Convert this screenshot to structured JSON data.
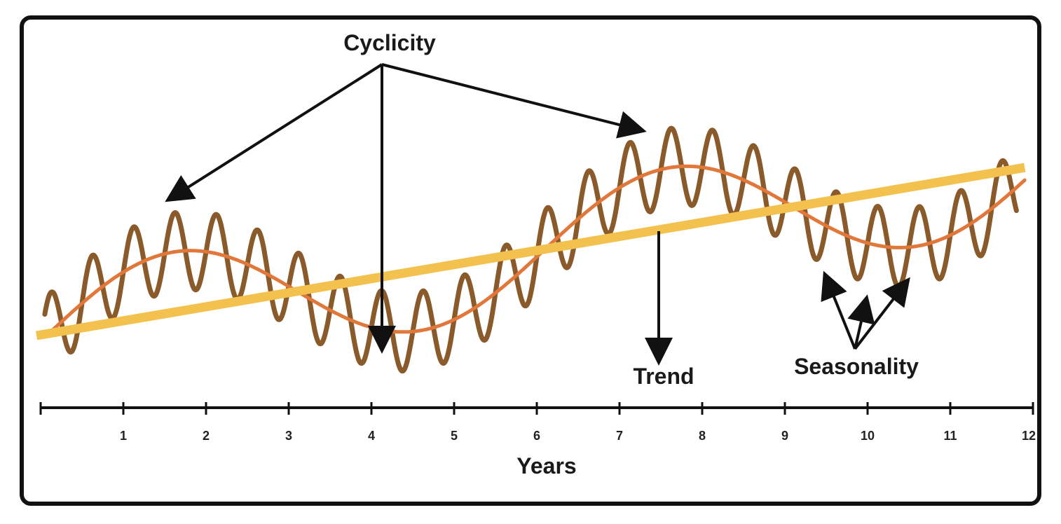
{
  "labels": {
    "cyclicity": "Cyclicity",
    "trend": "Trend",
    "seasonality": "Seasonality",
    "x_axis": "Years"
  },
  "x_ticks": [
    "1",
    "2",
    "3",
    "4",
    "5",
    "6",
    "7",
    "8",
    "9",
    "10",
    "11",
    "12"
  ],
  "colors": {
    "trend_line": "#f2c14e",
    "cycle_curve": "#e2773a",
    "seasonal_series": "#8a5a2b",
    "arrows": "#111111",
    "frame": "#111111"
  },
  "model": {
    "x_range": [
      0,
      12
    ],
    "trend": {
      "start": 0,
      "end": 2.8
    },
    "cycle": {
      "amplitude": 1.0,
      "period_years": 6.0,
      "peak_year": 1.6
    },
    "seasonality": {
      "amplitude": 0.65,
      "period_years": 0.5
    }
  }
}
